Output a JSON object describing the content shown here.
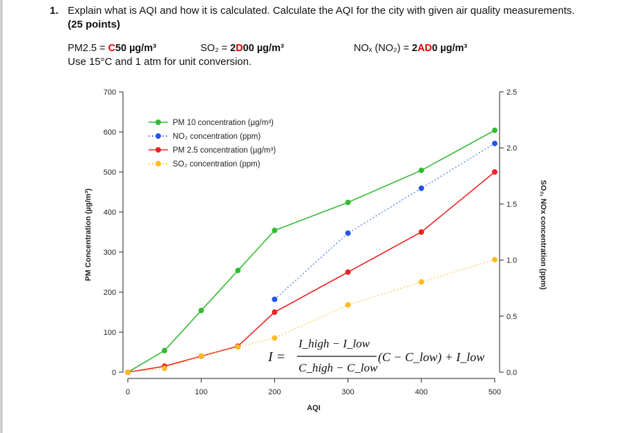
{
  "question": {
    "number": "1.",
    "text": "Explain what is AQI and how it is calculated. Calculate the AQI for the city with given air quality measurements.",
    "points": "(25 points)"
  },
  "measurements": {
    "pm25_label": "PM2.5 =",
    "pm25_value_red": "C",
    "pm25_value": "50 µg/m³",
    "so2_label": "SO₂ =",
    "so2_value_a": "2",
    "so2_value_red": "D",
    "so2_value_b": "00 µg/m³",
    "nox_label": "NOₓ (NO₂) =",
    "nox_value_a": "2",
    "nox_value_red": "AD",
    "nox_value_b": "0 µg/m³",
    "conditions": "Use 15°C and 1 atm for unit conversion."
  },
  "formula": {
    "lhs": "I =",
    "numerator": "I_high − I_low",
    "denominator": "C_high − C_low",
    "rhs": "(C − C_low) + I_low"
  },
  "chart_data": {
    "type": "line",
    "xlabel": "AQI",
    "ylabel": "PM Concentration (µg/m³)",
    "y2label": "SO₂, NOx concentration (ppm)",
    "xlim": [
      0,
      500
    ],
    "ylim": [
      0,
      700
    ],
    "y2lim": [
      0,
      2.5
    ],
    "x_ticks": [
      0,
      100,
      200,
      300,
      400,
      500
    ],
    "y_ticks": [
      0,
      100,
      200,
      300,
      400,
      500,
      600,
      700
    ],
    "y2_ticks": [
      0.0,
      0.5,
      1.0,
      1.5,
      2.0,
      2.5
    ],
    "legend_position": "top-left",
    "series": [
      {
        "name": "PM 10 concentration (µg/m³)",
        "axis": "left",
        "color": "#33bb33",
        "style": "solid",
        "x": [
          0,
          50,
          100,
          150,
          200,
          300,
          400,
          500
        ],
        "y": [
          0,
          54,
          154,
          254,
          354,
          424,
          504,
          604
        ]
      },
      {
        "name": "NO₂ concentration (ppm)",
        "axis": "right",
        "color": "#2255ee",
        "style": "dotted",
        "x": [
          200,
          300,
          400,
          500
        ],
        "y": [
          0.65,
          1.24,
          1.64,
          2.04
        ]
      },
      {
        "name": "PM 2.5 concentration (µg/m³)",
        "axis": "left",
        "color": "#ee2222",
        "style": "solid",
        "x": [
          0,
          50,
          100,
          150,
          200,
          300,
          400,
          500
        ],
        "y": [
          0,
          15,
          40,
          65,
          150,
          250,
          350,
          500
        ]
      },
      {
        "name": "SO₂ concentration (ppm)",
        "axis": "right",
        "color": "#ffbb22",
        "style": "dotted",
        "x": [
          0,
          50,
          100,
          150,
          200,
          300,
          400,
          500
        ],
        "y": [
          0,
          0.035,
          0.145,
          0.225,
          0.305,
          0.6,
          0.805,
          1.004
        ]
      }
    ]
  }
}
